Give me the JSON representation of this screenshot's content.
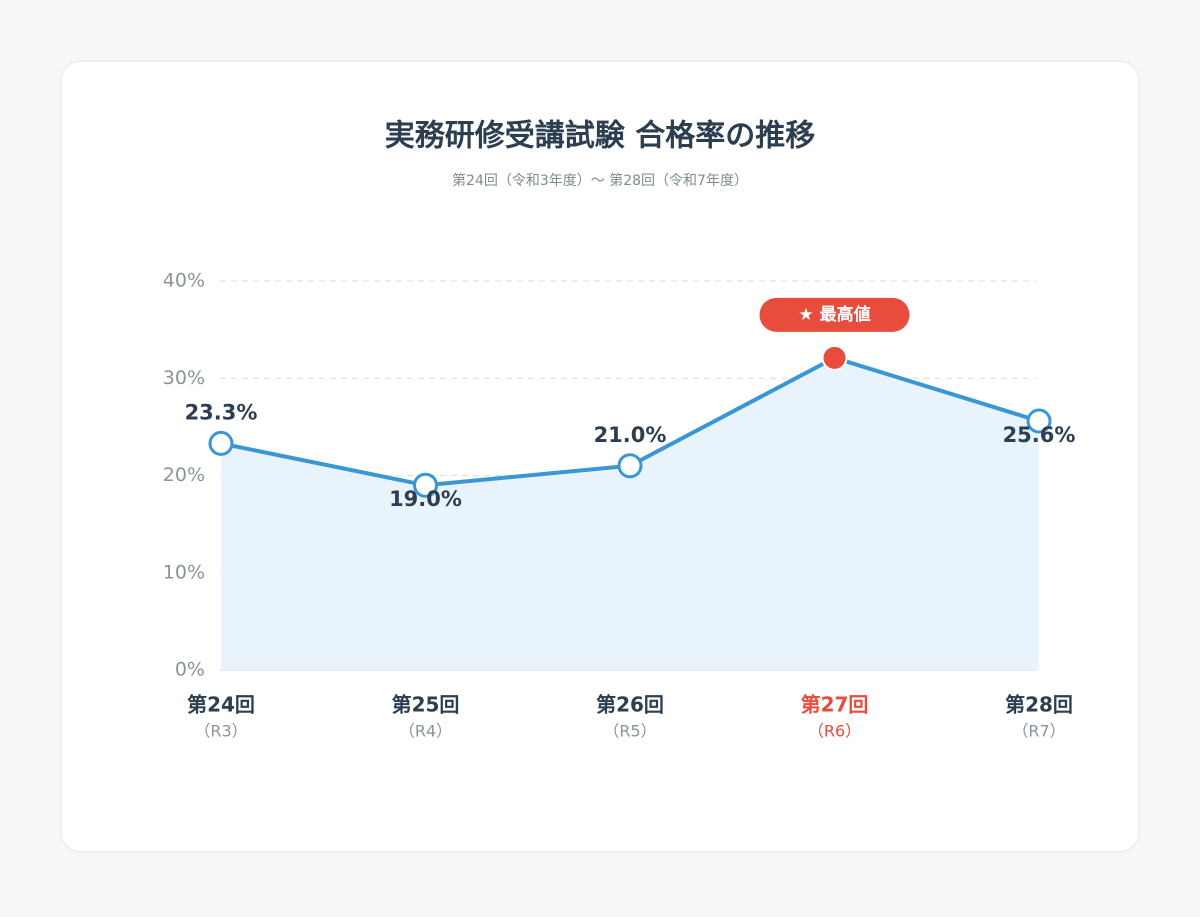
{
  "chart_data": {
    "type": "line",
    "title": "実務研修受講試験 合格率の推移",
    "subtitle": "第24回（令和3年度）〜 第28回（令和7年度）",
    "categories": [
      "第24回",
      "第25回",
      "第26回",
      "第27回",
      "第28回"
    ],
    "category_notes": [
      "（R3）",
      "（R4）",
      "（R5）",
      "（R6）",
      "（R7）"
    ],
    "values": [
      23.3,
      19.0,
      21.0,
      32.1,
      25.6
    ],
    "value_labels": [
      "23.3%",
      "19.0%",
      "21.0%",
      null,
      "25.6%"
    ],
    "color": "#3a97d4",
    "area_color": "#e8f3fc",
    "highlight": 3,
    "highlight_color": "#e74c3c",
    "highlight_label": "★ 最高値",
    "ylim": [
      0,
      40
    ],
    "yticks": [
      {
        "value": 0,
        "label": "0%"
      },
      {
        "value": 10,
        "label": "10%"
      },
      {
        "value": 20,
        "label": "20%"
      },
      {
        "value": 30,
        "label": "30%"
      },
      {
        "value": 40,
        "label": "40%"
      }
    ],
    "grid": true
  }
}
